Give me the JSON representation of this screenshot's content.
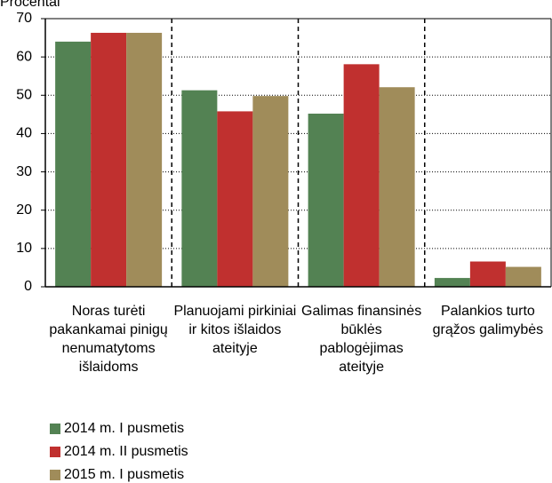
{
  "chart_data": {
    "type": "bar",
    "y_label": "Procentai",
    "categories": [
      "Noras turėti pakankamai pinigų nenumatytoms išlaidoms",
      "Planuojami pirkiniai ir kitos išlaidos ateityje",
      "Galimas finansinės būklės pablogėjimas ateityje",
      "Palankios turto grąžos galimybės"
    ],
    "series": [
      {
        "name": "2014 m. I pusmetis",
        "color": "#538253",
        "values": [
          64,
          51.3,
          45.2,
          2.3
        ]
      },
      {
        "name": "2014 m. II pusmetis",
        "color": "#c0302f",
        "values": [
          66.3,
          45.8,
          58.1,
          6.6
        ]
      },
      {
        "name": "2015 m. I pusmetis",
        "color": "#a08c5a",
        "values": [
          66.3,
          49.8,
          52.1,
          5.2
        ]
      }
    ],
    "ylim": [
      0,
      70
    ],
    "yticks": [
      0,
      10,
      20,
      30,
      40,
      50,
      60,
      70
    ],
    "grid": true,
    "legend": "bottom"
  }
}
